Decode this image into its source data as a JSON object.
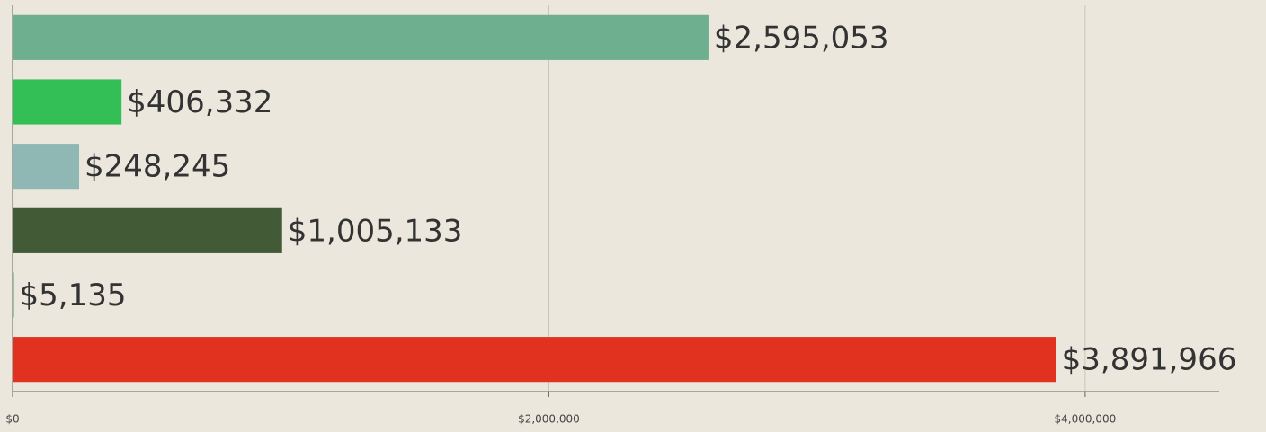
{
  "chart_data": {
    "type": "bar",
    "orientation": "horizontal",
    "values": [
      2595053,
      406332,
      248245,
      1005133,
      5135,
      3891966
    ],
    "value_labels": [
      "$2,595,053",
      "$406,332",
      "$248,245",
      "$1,005,133",
      "$5,135",
      "$3,891,966"
    ],
    "colors": [
      "#6daf8e",
      "#34bf56",
      "#8fb8b4",
      "#435a37",
      "#4fa86d",
      "#e0321f"
    ],
    "xlim": [
      0,
      4500000
    ],
    "xticks": [
      {
        "value": 0,
        "label": "$0"
      },
      {
        "value": 2000000,
        "label": "$2,000,000"
      },
      {
        "value": 4000000,
        "label": "$4,000,000"
      }
    ],
    "grid": true
  }
}
